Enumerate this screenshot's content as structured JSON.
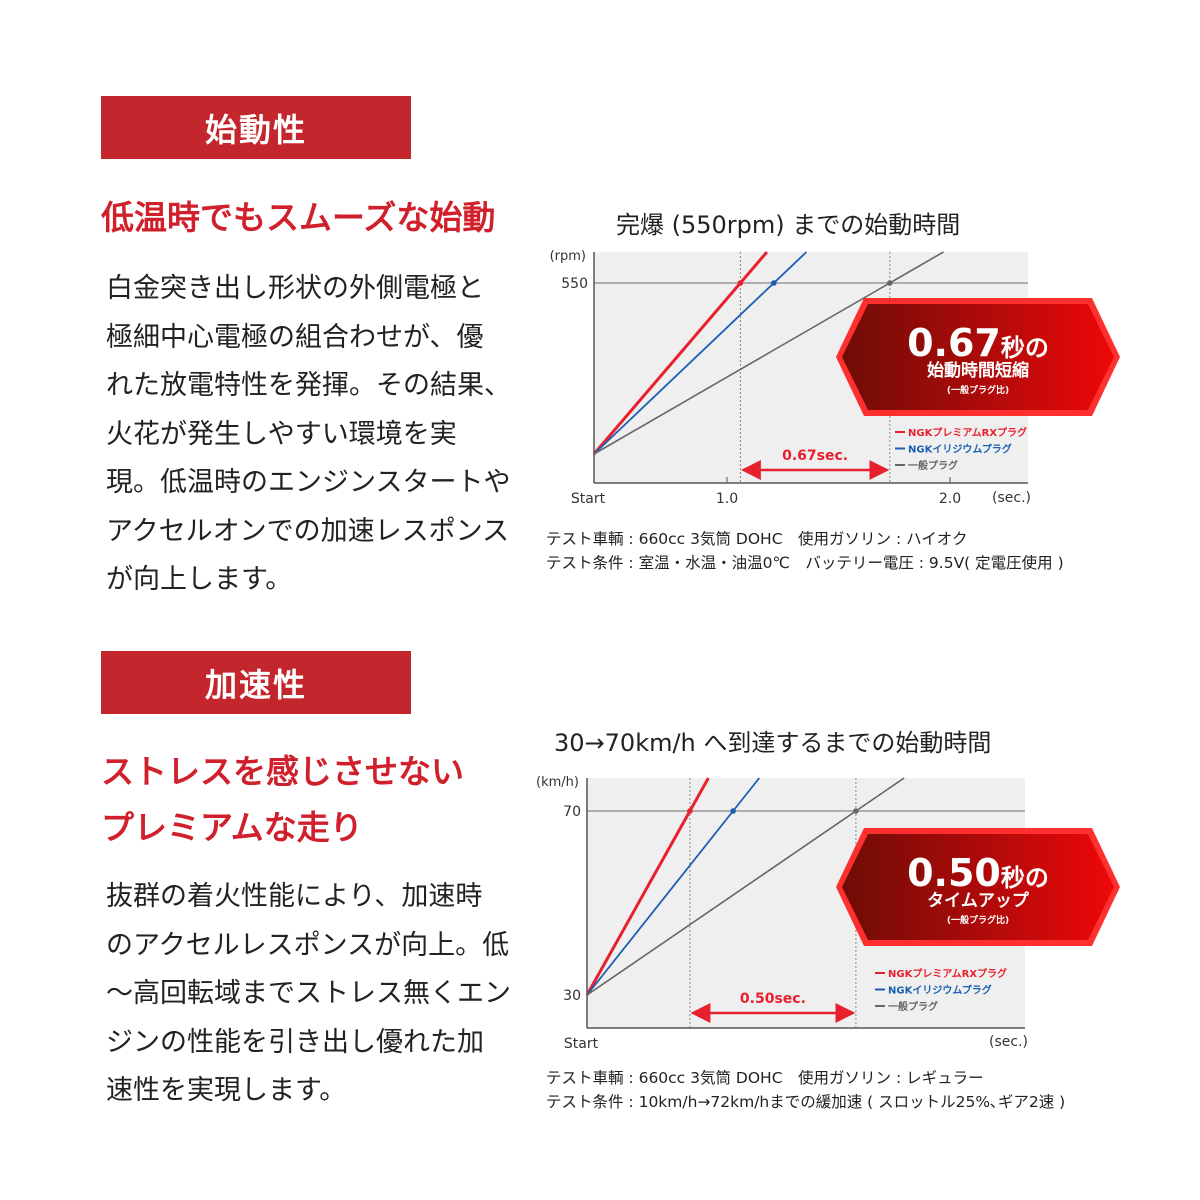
{
  "sections": [
    {
      "banner": "始動性",
      "heading_lines": [
        "低温時でもスムーズな始動"
      ],
      "body_lines": [
        "白金突き出し形状の外側電極と",
        "極細中心電極の組合わせが、優",
        "れた放電特性を発揮。その結果、",
        "火花が発生しやすい環境を実",
        "現。低温時のエンジンスタートや",
        "アクセルオンでの加速レスポンス",
        "が向上します。"
      ]
    },
    {
      "banner": "加速性",
      "heading_lines": [
        "ストレスを感じさせない",
        "プレミアムな走り"
      ],
      "body_lines": [
        "抜群の着火性能により、加速時",
        "のアクセルレスポンスが向上。低",
        "～高回転域までストレス無くエン",
        "ジンの性能を引き出し優れた加",
        "速性を実現します。"
      ]
    }
  ],
  "colors": {
    "accent": "#c4262e",
    "heading": "#d0202c",
    "rx": "#e8202e",
    "iridium": "#1a5fb4",
    "standard": "#666666",
    "plot_bg": "#efefef"
  },
  "chart_data": [
    {
      "type": "line",
      "title": "完爆 (550rpm) までの始動時間",
      "xlabel": "(sec.)",
      "ylabel": "(rpm)",
      "x_start_label": "Start",
      "x_ticks": [
        "1.0",
        "2.0"
      ],
      "y_ticks": [
        "550"
      ],
      "target_value": 550,
      "series": [
        {
          "name": "NGKプレミアムRXプラグ",
          "time_at_target": 1.06
        },
        {
          "name": "NGKイリジウムプラグ",
          "time_at_target": 1.21
        },
        {
          "name": "一般プラグ",
          "time_at_target": 1.73
        }
      ],
      "annotation": "0.67sec.",
      "badge": {
        "big": "0.67",
        "unit": "秒の",
        "line2": "始動時間短縮",
        "line3": "(一般プラグ比)"
      },
      "legend_position": "bottom-right",
      "notes": [
        "テスト車輌 : 660cc 3気筒 DOHC　使用ガソリン : ハイオク",
        "テスト条件 : 室温・水温・油温0℃　バッテリー電圧 : 9.5V( 定電圧使用 )"
      ]
    },
    {
      "type": "line",
      "title": "30→70km/h へ到達するまでの始動時間",
      "xlabel": "(sec.)",
      "ylabel": "(km/h)",
      "x_start_label": "Start",
      "y_ticks": [
        "70",
        "30"
      ],
      "target_value": 70,
      "start_value": 30,
      "series": [
        {
          "name": "NGKプレミアムRXプラグ",
          "time_at_target": 0.31
        },
        {
          "name": "NGKイリジウムプラグ",
          "time_at_target": 0.44
        },
        {
          "name": "一般プラグ",
          "time_at_target": 0.81
        }
      ],
      "annotation": "0.50sec.",
      "badge": {
        "big": "0.50",
        "unit": "秒の",
        "line2": "タイムアップ",
        "line3": "(一般プラグ比)"
      },
      "legend_position": "bottom-right",
      "notes": [
        "テスト車輌 : 660cc 3気筒 DOHC　使用ガソリン : レギュラー",
        "テスト条件 : 10km/h→72km/hまでの緩加速 ( スロットル25%､ギア2速 )"
      ]
    }
  ]
}
